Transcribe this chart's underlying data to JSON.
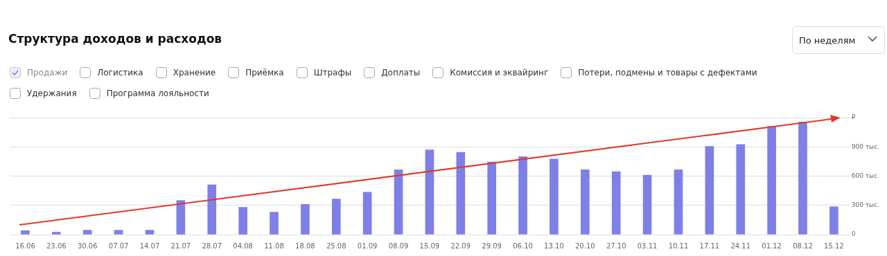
{
  "chart_data": {
    "type": "bar",
    "title": "Структура доходов и расходов",
    "categories": [
      "16.06",
      "23.06",
      "30.06",
      "07.07",
      "14.07",
      "21.07",
      "28.07",
      "04.08",
      "11.08",
      "18.08",
      "25.08",
      "01.09",
      "08.09",
      "15.09",
      "22.09",
      "29.09",
      "06.10",
      "13.10",
      "20.10",
      "27.10",
      "03.11",
      "10.11",
      "17.11",
      "24.11",
      "01.12",
      "08.12",
      "15.12"
    ],
    "series": [
      {
        "name": "Продажи",
        "color": "#7f7fe8",
        "values": [
          40,
          25,
          45,
          45,
          45,
          350,
          510,
          280,
          230,
          310,
          365,
          435,
          665,
          870,
          845,
          745,
          800,
          775,
          665,
          645,
          610,
          665,
          905,
          925,
          1110,
          1155,
          285
        ]
      }
    ],
    "ylim": [
      0,
      1200
    ],
    "yticks": [
      0,
      {
        "value": 300,
        "label": "300 тыс."
      },
      {
        "value": 600,
        "label": "600 тыс."
      },
      {
        "value": 900,
        "label": "900 тыс."
      },
      {
        "value": 1200,
        "label": "₽"
      }
    ],
    "grid": "y",
    "legend": "top left",
    "annotations": [
      "По неделям",
      "Логистика",
      "Хранение",
      "Приёмка",
      "Штрафы",
      "Доплаты",
      "Комиссия и эквайринг",
      "Потери, подмены и товары с дефектами",
      "Удержания",
      "Программа лояльности"
    ]
  }
}
